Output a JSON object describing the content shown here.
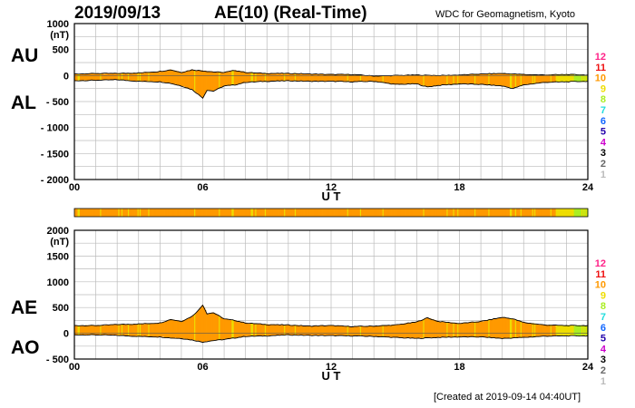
{
  "header": {
    "date": "2019/09/13",
    "title": "AE(10) (Real-Time)",
    "source": "WDC for Geomagnetism, Kyoto"
  },
  "footer": {
    "created": "[Created at 2019-09-14 04:40UT]"
  },
  "legend_colors": [
    "#ff2288",
    "#ee1111",
    "#ff9900",
    "#eedd00",
    "#aaee22",
    "#22dddd",
    "#1166ff",
    "#2200aa",
    "#cc00cc",
    "#000000",
    "#666666",
    "#bbbbbb"
  ],
  "chart_data": [
    {
      "type": "area",
      "title": "AU / AL",
      "upper_label": "AU",
      "lower_label": "AL",
      "unit": "(nT)",
      "xlabel": "U T",
      "xlim": [
        0,
        24
      ],
      "ylim": [
        -2000,
        1000
      ],
      "yticks": [
        1000,
        500,
        0,
        -500,
        -1000,
        -1500,
        -2000
      ],
      "ytick_labels": [
        "1000",
        "500",
        "0",
        "- 500",
        "- 1000",
        "- 1500",
        "- 2000"
      ],
      "xticks": [
        0,
        6,
        12,
        18,
        24
      ],
      "xtick_labels": [
        "00",
        "06",
        "12",
        "18",
        "24"
      ],
      "legend": [
        "12",
        "11",
        "10",
        "9",
        "8",
        "7",
        "6",
        "5",
        "4",
        "3",
        "2",
        "1"
      ],
      "series": [
        {
          "name": "AU",
          "x": [
            0,
            1,
            2,
            3,
            4,
            4.5,
            5,
            5.5,
            6,
            6.5,
            7,
            7.5,
            8,
            9,
            10,
            11,
            12,
            13,
            14,
            15,
            16,
            17,
            18,
            19,
            20,
            21,
            22,
            23,
            24
          ],
          "values": [
            30,
            40,
            40,
            50,
            80,
            110,
            60,
            110,
            90,
            70,
            60,
            100,
            60,
            40,
            40,
            30,
            20,
            20,
            -10,
            0,
            10,
            0,
            10,
            30,
            40,
            20,
            10,
            20,
            10
          ]
        },
        {
          "name": "AL",
          "x": [
            0,
            1,
            2,
            3,
            4,
            4.5,
            5,
            5.5,
            6,
            6.2,
            6.5,
            7,
            7.5,
            8,
            9,
            10,
            11,
            12,
            13,
            14,
            15,
            16,
            16.5,
            17,
            18,
            19,
            20,
            20.5,
            21,
            22,
            23,
            24
          ],
          "values": [
            -100,
            -90,
            -80,
            -110,
            -120,
            -150,
            -200,
            -270,
            -430,
            -280,
            -300,
            -200,
            -180,
            -130,
            -110,
            -100,
            -110,
            -110,
            -120,
            -110,
            -170,
            -160,
            -220,
            -190,
            -160,
            -170,
            -200,
            -250,
            -180,
            -130,
            -120,
            -110
          ]
        }
      ],
      "activity_band_colors": [
        "#ff9900",
        "#eedd00",
        "#aaee22"
      ]
    },
    {
      "type": "area",
      "title": "AE / AO",
      "upper_label": "AE",
      "lower_label": "AO",
      "unit": "(nT)",
      "xlabel": "U T",
      "xlim": [
        0,
        24
      ],
      "ylim": [
        -500,
        2000
      ],
      "yticks": [
        2000,
        1500,
        1000,
        500,
        0,
        -500
      ],
      "ytick_labels": [
        "2000",
        "1500",
        "1000",
        "500",
        "0",
        "- 500"
      ],
      "xticks": [
        0,
        6,
        12,
        18,
        24
      ],
      "xtick_labels": [
        "00",
        "06",
        "12",
        "18",
        "24"
      ],
      "legend": [
        "12",
        "11",
        "10",
        "9",
        "8",
        "7",
        "6",
        "5",
        "4",
        "3",
        "2",
        "1"
      ],
      "series": [
        {
          "name": "AE",
          "x": [
            0,
            1,
            2,
            3,
            4,
            4.5,
            5,
            5.5,
            5.8,
            6,
            6.2,
            6.5,
            7,
            7.5,
            8,
            9,
            10,
            11,
            12,
            13,
            14,
            15,
            16,
            16.5,
            17,
            18,
            19,
            20,
            20.5,
            21,
            22,
            23,
            24
          ],
          "values": [
            150,
            150,
            170,
            180,
            200,
            270,
            230,
            330,
            450,
            550,
            380,
            400,
            280,
            250,
            200,
            170,
            160,
            140,
            150,
            130,
            140,
            160,
            220,
            300,
            230,
            190,
            230,
            310,
            280,
            210,
            160,
            150,
            150
          ]
        },
        {
          "name": "AO",
          "x": [
            0,
            1,
            2,
            3,
            4,
            4.5,
            5,
            5.5,
            6,
            6.5,
            7,
            8,
            9,
            10,
            11,
            12,
            13,
            14,
            15,
            16,
            17,
            18,
            19,
            20,
            21,
            22,
            23,
            24
          ],
          "values": [
            -30,
            -30,
            -40,
            -60,
            -70,
            -90,
            -100,
            -130,
            -170,
            -140,
            -120,
            -60,
            -50,
            -30,
            -40,
            -45,
            -50,
            -60,
            -80,
            -100,
            -80,
            -70,
            -70,
            -100,
            -80,
            -55,
            -50,
            -50
          ]
        }
      ],
      "activity_band_colors": [
        "#ff9900",
        "#eedd00",
        "#aaee22"
      ]
    }
  ]
}
